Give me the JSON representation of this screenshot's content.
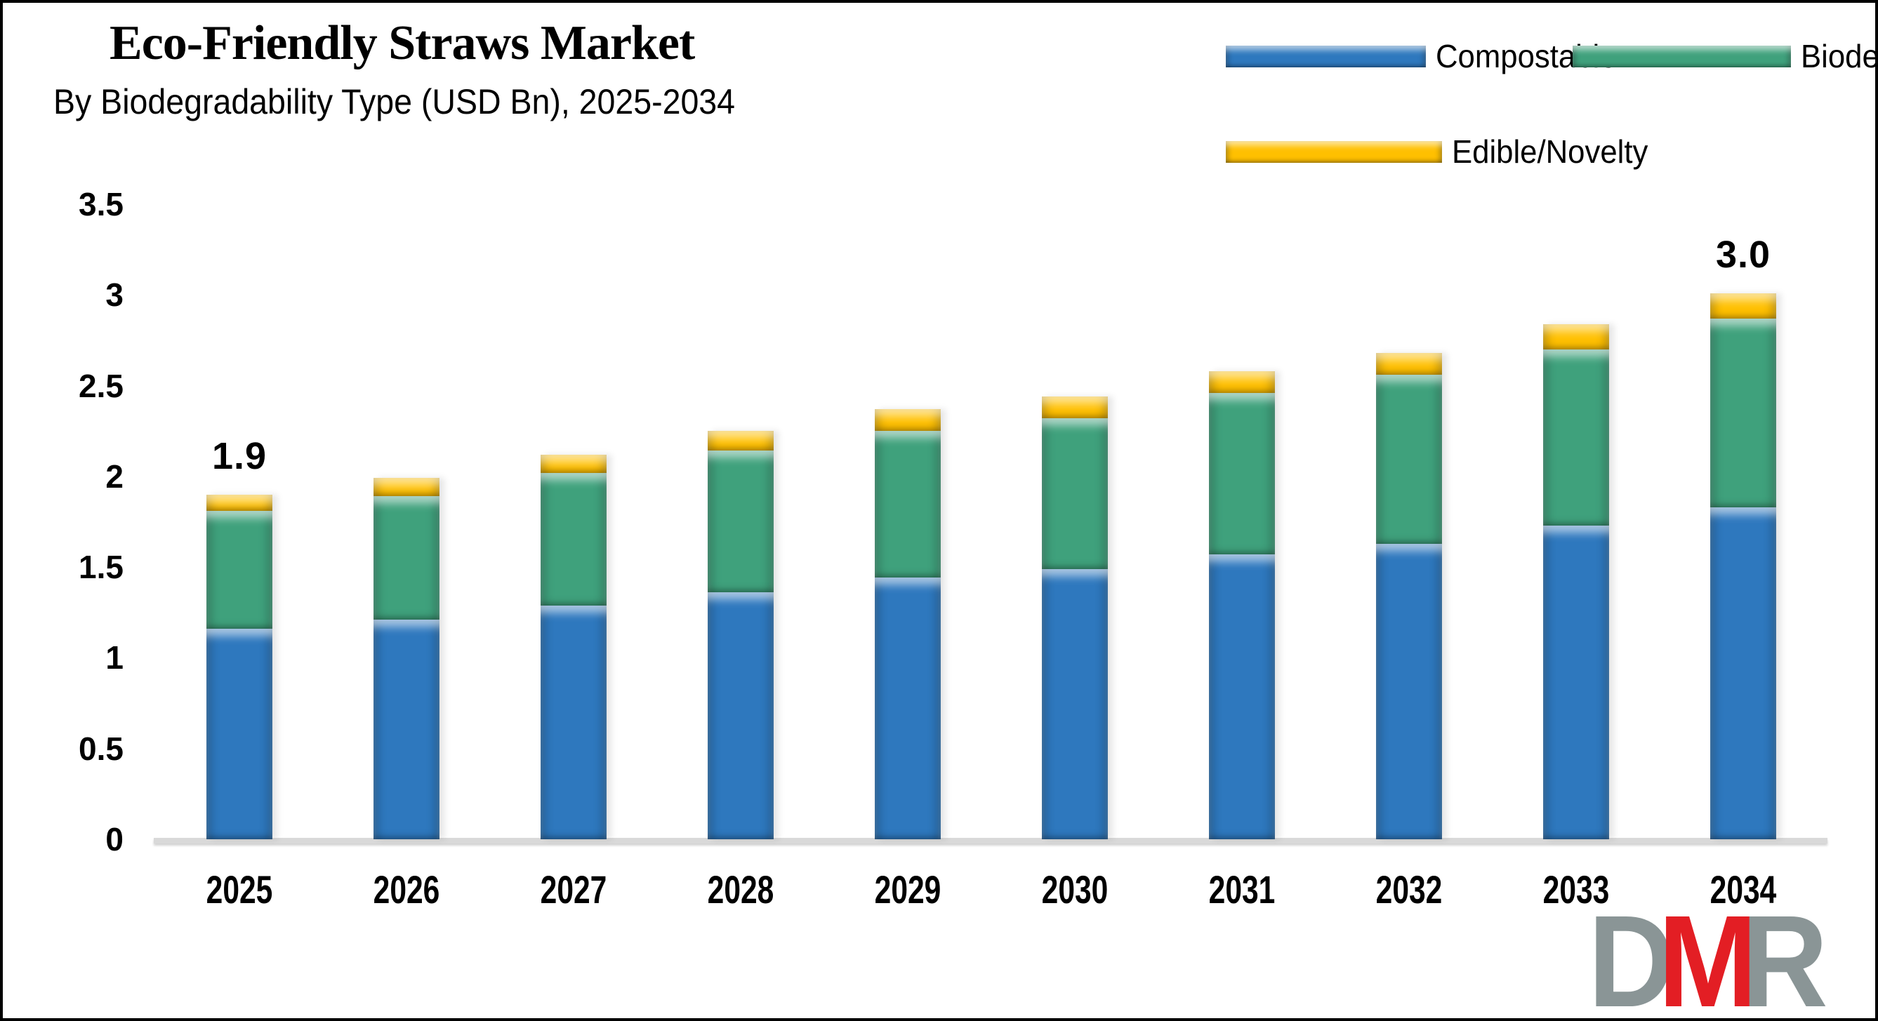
{
  "title": "Eco-Friendly Straws Market",
  "subtitle": "By Biodegradability Type (USD Bn), 2025-2034",
  "logo": {
    "d": "D",
    "m": "M",
    "r": "R"
  },
  "colors": {
    "compostable_blue": "#2e78be",
    "biodegradable_green": "#3fa17c",
    "edible_yellow": "#ffc000",
    "axis_line_gray": "#d9d9d9",
    "logo_gray": "#8a9596",
    "logo_red": "#e31e24",
    "text_black": "#000000"
  },
  "chart_data": {
    "type": "bar",
    "stacked": true,
    "title": "Eco-Friendly Straws Market",
    "subtitle": "By Biodegradability Type (USD Bn), 2025-2034",
    "xlabel": "",
    "ylabel": "",
    "grid": false,
    "legend_position": "top-right",
    "ylim": [
      0,
      3.5
    ],
    "ytick_step": 0.5,
    "yticks": [
      "0",
      "0.5",
      "1",
      "1.5",
      "2",
      "2.5",
      "3",
      "3.5"
    ],
    "categories": [
      "2025",
      "2026",
      "2027",
      "2028",
      "2029",
      "2030",
      "2031",
      "2032",
      "2033",
      "2034"
    ],
    "series": [
      {
        "name": "Compostable",
        "color": "#2e78be",
        "values": [
          1.16,
          1.21,
          1.29,
          1.36,
          1.44,
          1.49,
          1.57,
          1.63,
          1.73,
          1.83
        ]
      },
      {
        "name": "Biodegradable",
        "color": "#3fa17c",
        "values": [
          0.65,
          0.68,
          0.73,
          0.78,
          0.81,
          0.83,
          0.89,
          0.93,
          0.97,
          1.04
        ]
      },
      {
        "name": "Edible/Novelty",
        "color": "#ffc000",
        "values": [
          0.09,
          0.1,
          0.1,
          0.11,
          0.12,
          0.12,
          0.12,
          0.12,
          0.14,
          0.14
        ]
      }
    ],
    "totals": [
      1.9,
      1.99,
      2.12,
      2.25,
      2.37,
      2.44,
      2.58,
      2.68,
      2.84,
      3.01
    ],
    "annotations": [
      {
        "category": "2025",
        "text": "1.9"
      },
      {
        "category": "2034",
        "text": "3.0"
      }
    ]
  }
}
